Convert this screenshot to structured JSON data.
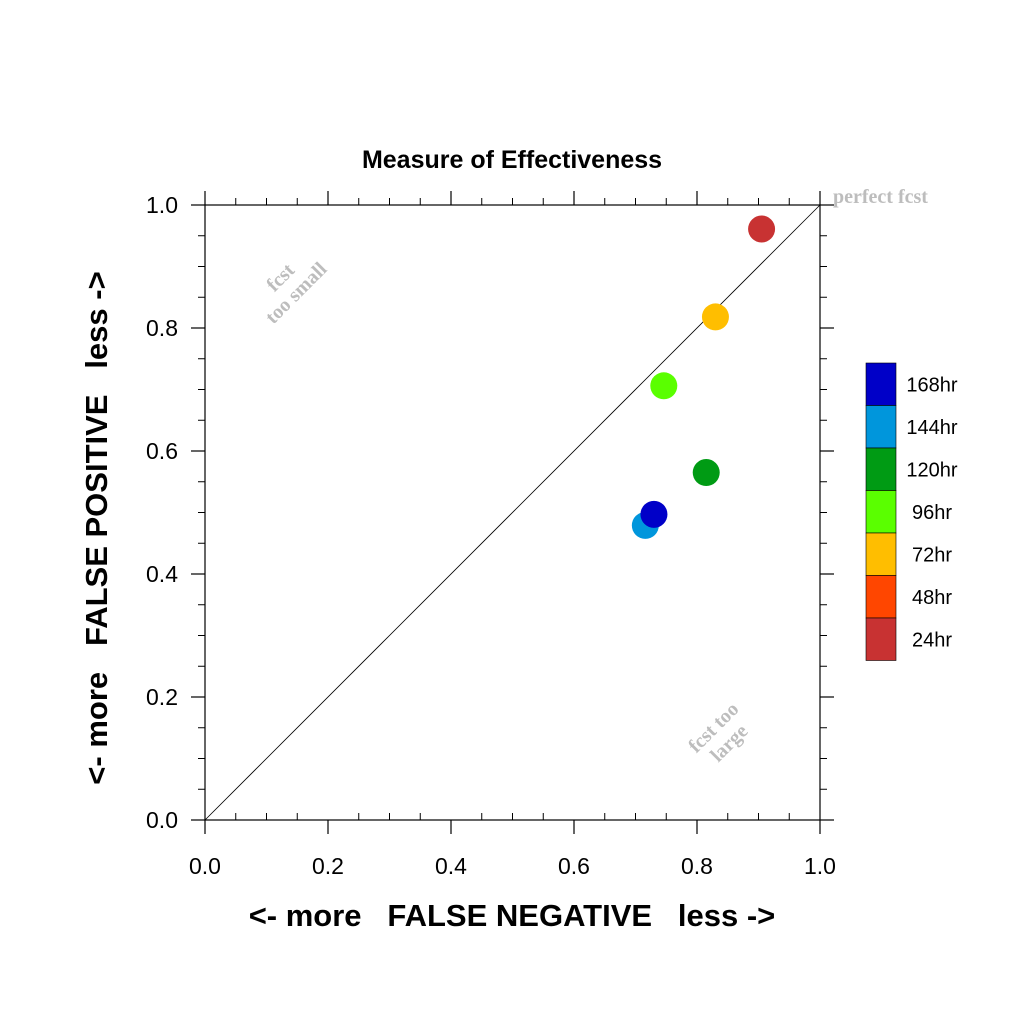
{
  "chart_data": {
    "type": "scatter",
    "title": "Measure of Effectiveness",
    "xlabel": "<- more   FALSE NEGATIVE   less ->",
    "ylabel": "<- more   FALSE POSITIVE   less ->",
    "xlim": [
      0,
      1
    ],
    "ylim": [
      0,
      1
    ],
    "x_ticks": [
      "0.0",
      "0.2",
      "0.4",
      "0.6",
      "0.8",
      "1.0"
    ],
    "y_ticks": [
      "0.0",
      "0.2",
      "0.4",
      "0.6",
      "0.8",
      "1.0"
    ],
    "grid": false,
    "reference_line": {
      "from": [
        0,
        0
      ],
      "to": [
        1,
        1
      ]
    },
    "annotations": {
      "perfect": "perfect fcst",
      "too_small": [
        "fcst",
        "too small"
      ],
      "too_large": [
        "fcst too",
        "large"
      ]
    },
    "legend_position": "right",
    "series": [
      {
        "name": "168hr",
        "color": "#0000c8",
        "x": 0.73,
        "y": 0.497
      },
      {
        "name": "144hr",
        "color": "#0096dc",
        "x": 0.716,
        "y": 0.479
      },
      {
        "name": "120hr",
        "color": "#009b14",
        "x": 0.815,
        "y": 0.565
      },
      {
        "name": "96hr",
        "color": "#5aff00",
        "x": 0.746,
        "y": 0.706
      },
      {
        "name": "72hr",
        "color": "#ffbe00",
        "x": 0.83,
        "y": 0.818
      },
      {
        "name": "48hr",
        "color": "#ff4600",
        "x": null,
        "y": null
      },
      {
        "name": "24hr",
        "color": "#c83232",
        "x": 0.905,
        "y": 0.961
      }
    ]
  }
}
